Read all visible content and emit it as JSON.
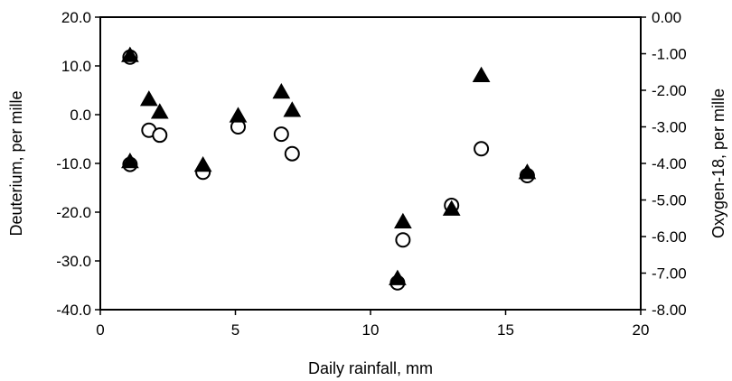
{
  "chart_data": {
    "type": "scatter",
    "xlabel": "Daily rainfall, mm",
    "ylabel_left": "Deuterium, per mille",
    "ylabel_right": "Oxygen-18, per mille",
    "xlim": [
      0,
      20
    ],
    "ylim_left": [
      -40,
      20
    ],
    "ylim_right": [
      -8,
      0
    ],
    "x_ticks": [
      "0",
      "5",
      "10",
      "15",
      "20"
    ],
    "y_left_ticks": [
      "20.0",
      "10.0",
      "0.0",
      "-10.0",
      "-20.0",
      "-30.0",
      "-40.0"
    ],
    "y_right_ticks": [
      "0.00",
      "-1.00",
      "-2.00",
      "-3.00",
      "-4.00",
      "-5.00",
      "-6.00",
      "-7.00",
      "-8.00"
    ],
    "grid": false,
    "series": [
      {
        "marker": "open-circle",
        "axis": "left",
        "points": [
          [
            1.1,
            11.8
          ],
          [
            1.1,
            -10.2
          ],
          [
            1.8,
            -3.2
          ],
          [
            2.2,
            -4.2
          ],
          [
            3.8,
            -11.8
          ],
          [
            5.1,
            -2.5
          ],
          [
            6.7,
            -4.0
          ],
          [
            7.1,
            -8.0
          ],
          [
            11.0,
            -34.5
          ],
          [
            11.2,
            -25.7
          ],
          [
            13.0,
            -18.6
          ],
          [
            14.1,
            -7.0
          ],
          [
            15.8,
            -12.5
          ]
        ]
      },
      {
        "marker": "filled-triangle",
        "axis": "right",
        "points": [
          [
            1.1,
            -1.05
          ],
          [
            1.1,
            -3.95
          ],
          [
            1.8,
            -2.25
          ],
          [
            2.2,
            -2.6
          ],
          [
            3.8,
            -4.05
          ],
          [
            5.1,
            -2.7
          ],
          [
            6.7,
            -2.05
          ],
          [
            7.1,
            -2.55
          ],
          [
            11.0,
            -7.15
          ],
          [
            11.2,
            -5.6
          ],
          [
            13.0,
            -5.25
          ],
          [
            14.1,
            -1.6
          ],
          [
            15.8,
            -4.25
          ]
        ]
      }
    ]
  }
}
